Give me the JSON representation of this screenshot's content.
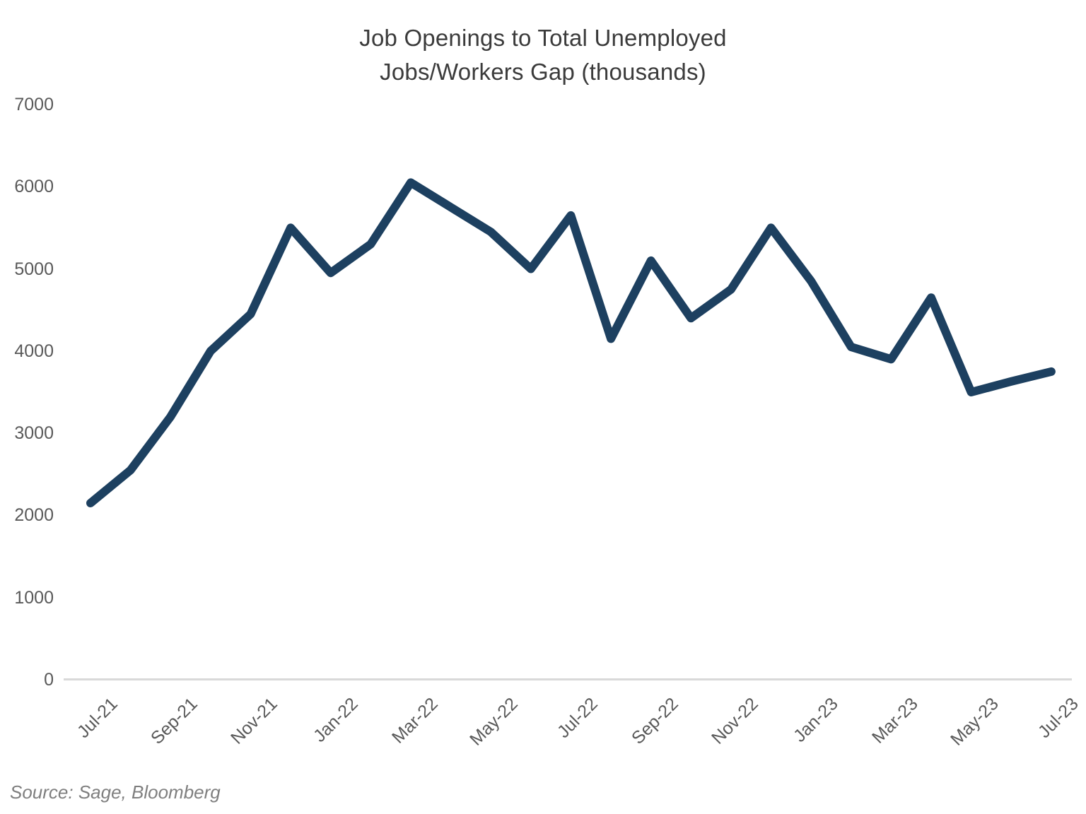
{
  "title": {
    "line1": "Job Openings to Total Unemployed",
    "line2": "Jobs/Workers Gap (thousands)"
  },
  "source": "Source: Sage, Bloomberg",
  "colors": {
    "line": "#1D4060",
    "axis": "#D9D9D9",
    "tick_label": "#595959",
    "title_text": "#3B3B3B",
    "source_text": "#7F7F7F"
  },
  "chart_data": {
    "type": "line",
    "title": "Job Openings to Total Unemployed Jobs/Workers Gap (thousands)",
    "xlabel": "",
    "ylabel": "",
    "grid": false,
    "legend": false,
    "ylim": [
      0,
      7000
    ],
    "yticks": [
      0,
      1000,
      2000,
      3000,
      4000,
      5000,
      6000,
      7000
    ],
    "x": [
      "Jul-21",
      "Aug-21",
      "Sep-21",
      "Oct-21",
      "Nov-21",
      "Dec-21",
      "Jan-22",
      "Feb-22",
      "Mar-22",
      "Apr-22",
      "May-22",
      "Jun-22",
      "Jul-22",
      "Aug-22",
      "Sep-22",
      "Oct-22",
      "Nov-22",
      "Dec-22",
      "Jan-23",
      "Feb-23",
      "Mar-23",
      "Apr-23",
      "May-23",
      "Jun-23",
      "Jul-23"
    ],
    "values": [
      2150,
      2550,
      3200,
      4000,
      4450,
      5500,
      4950,
      5300,
      6050,
      5750,
      5450,
      5000,
      5650,
      4150,
      5100,
      4400,
      4750,
      5500,
      4850,
      4050,
      3900,
      4650,
      3500,
      3630,
      3750
    ],
    "x_tick_labels": [
      "Jul-21",
      "Sep-21",
      "Nov-21",
      "Jan-22",
      "Mar-22",
      "May-22",
      "Jul-22",
      "Sep-22",
      "Nov-22",
      "Jan-23",
      "Mar-23",
      "May-23",
      "Jul-23"
    ]
  }
}
